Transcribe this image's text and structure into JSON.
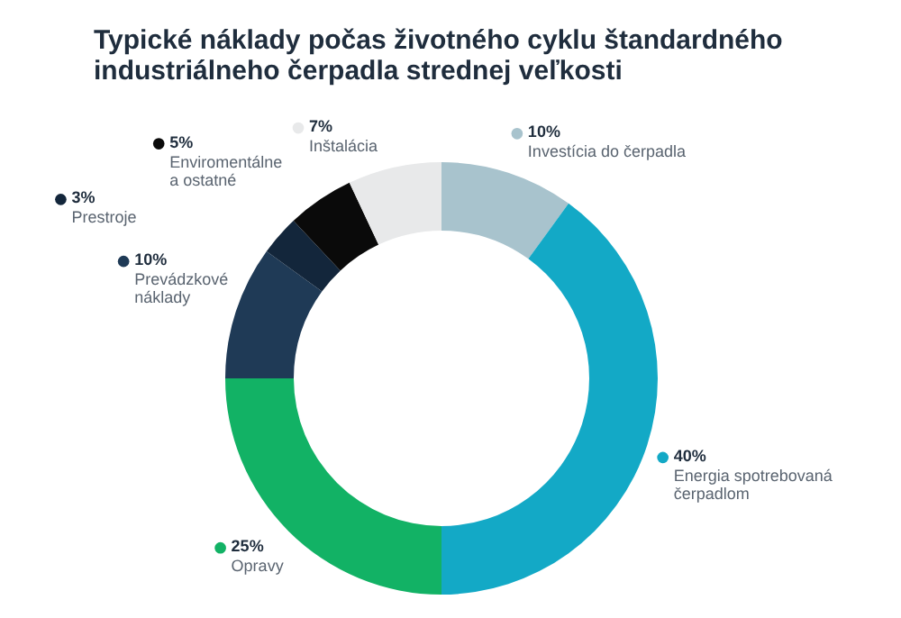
{
  "chart_data": {
    "type": "donut",
    "title": "Typické náklady počas životného cyklu štandardného industriálneho čerpadla strednej veľkosti",
    "categories": [
      "Investícia do čerpadla",
      "Energia spotrebovaná čerpadlom",
      "Opravy",
      "Prevádzkové náklady",
      "Prestroje",
      "Enviromentálne a ostatné",
      "Inštalácia"
    ],
    "values": [
      10,
      40,
      25,
      10,
      3,
      5,
      7
    ],
    "colors": [
      "#a8c3cd",
      "#13a9c6",
      "#12b265",
      "#1f3a56",
      "#13263b",
      "#0a0a0a",
      "#e8e9ea"
    ],
    "legend": "left",
    "value_labels": [
      "10%",
      "40%",
      "25%",
      "10%",
      "3%",
      "5%",
      "7%"
    ]
  }
}
